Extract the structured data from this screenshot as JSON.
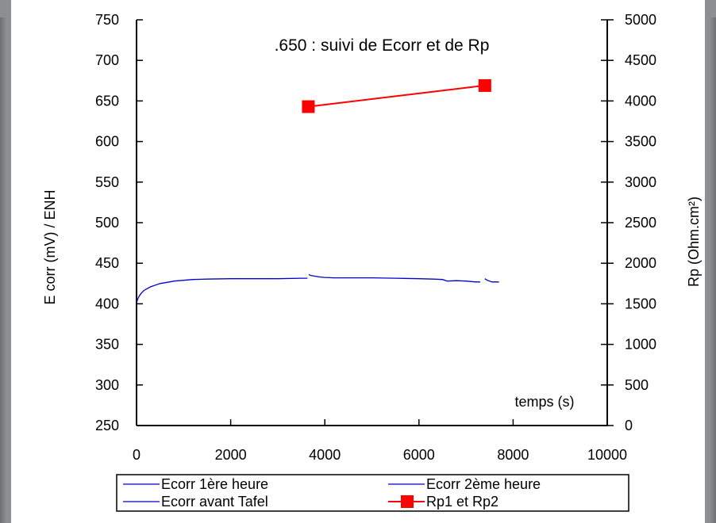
{
  "chart_data": {
    "type": "line",
    "title": ".650 : suivi de Ecorr et de Rp",
    "xlabel": "temps (s)",
    "ylabel_left": "E corr (mV) / ENH",
    "ylabel_right": "Rp (Ohm.cm²)",
    "xlim": [
      0,
      10000
    ],
    "ylim_left": [
      250,
      750
    ],
    "ylim_right": [
      0,
      5000
    ],
    "x_ticks": [
      "0",
      "2000",
      "4000",
      "6000",
      "8000",
      "10000"
    ],
    "y_left_ticks": [
      "250",
      "300",
      "350",
      "400",
      "450",
      "500",
      "550",
      "600",
      "650",
      "700",
      "750"
    ],
    "y_right_ticks": [
      "0",
      "500",
      "1000",
      "1500",
      "2000",
      "2500",
      "3000",
      "3500",
      "4000",
      "4500",
      "5000"
    ],
    "grid": false,
    "legend_position": "bottom",
    "series": [
      {
        "name": "Ecorr 1ère heure",
        "axis": "left",
        "color": "#0000cc",
        "marker": "none",
        "x": [
          0,
          20,
          50,
          100,
          150,
          200,
          300,
          400,
          500,
          600,
          700,
          800,
          1000,
          1200,
          1500,
          2000,
          2500,
          3000,
          3500,
          3630
        ],
        "y": [
          401,
          405,
          409,
          413,
          416,
          418,
          421,
          423,
          425,
          426,
          427,
          428,
          429,
          430,
          430.5,
          431,
          431,
          431,
          431.5,
          431.5
        ]
      },
      {
        "name": "Ecorr 2ème heure",
        "axis": "left",
        "color": "#0000cc",
        "marker": "none",
        "x": [
          3660,
          3700,
          3800,
          3900,
          4000,
          4200,
          4500,
          5000,
          5500,
          6000,
          6300,
          6500,
          6600,
          6800,
          7000,
          7200,
          7300
        ],
        "y": [
          436,
          435,
          434,
          433,
          432.5,
          432,
          432,
          432,
          431.5,
          431,
          430.5,
          430,
          428,
          428.5,
          428,
          427,
          427
        ]
      },
      {
        "name": "Ecorr avant Tafel",
        "axis": "left",
        "color": "#0000cc",
        "marker": "none",
        "x": [
          7400,
          7450,
          7500,
          7550,
          7600,
          7700
        ],
        "y": [
          431,
          429,
          428,
          427,
          427,
          427
        ]
      },
      {
        "name": "Rp1 et Rp2",
        "axis": "right",
        "color": "#ff0000",
        "marker": "square",
        "x": [
          3650,
          7400
        ],
        "y": [
          3930,
          4190
        ]
      }
    ]
  }
}
